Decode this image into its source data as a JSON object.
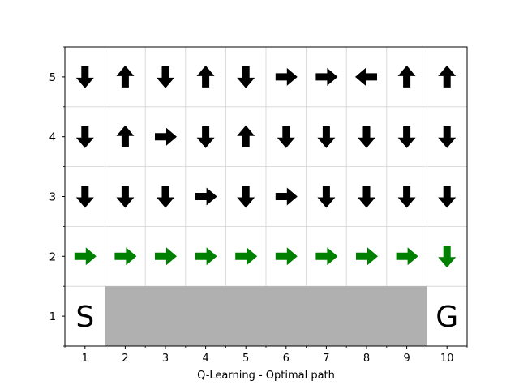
{
  "chart_data": {
    "type": "grid-policy",
    "title": "",
    "xlabel": "Q-Learning - Optimal path",
    "ylabel": "",
    "xlim": [
      0.5,
      10.5
    ],
    "ylim": [
      0.5,
      5.5
    ],
    "xticks": [
      1,
      2,
      3,
      4,
      5,
      6,
      7,
      8,
      9,
      10
    ],
    "yticks": [
      1,
      2,
      3,
      4,
      5
    ],
    "grid": true,
    "colors": {
      "policy": "#000000",
      "path": "#008000",
      "cliff": "#b0b0b0",
      "grid": "#d3d3d3"
    },
    "cliff": {
      "x_from": 2,
      "x_to": 9,
      "y": 1
    },
    "labels": [
      {
        "text": "S",
        "x": 1,
        "y": 1
      },
      {
        "text": "G",
        "x": 10,
        "y": 1
      }
    ],
    "arrows": [
      {
        "x": 1,
        "y": 5,
        "dir": "down",
        "path": false
      },
      {
        "x": 2,
        "y": 5,
        "dir": "up",
        "path": false
      },
      {
        "x": 3,
        "y": 5,
        "dir": "down",
        "path": false
      },
      {
        "x": 4,
        "y": 5,
        "dir": "up",
        "path": false
      },
      {
        "x": 5,
        "y": 5,
        "dir": "down",
        "path": false
      },
      {
        "x": 6,
        "y": 5,
        "dir": "right",
        "path": false
      },
      {
        "x": 7,
        "y": 5,
        "dir": "right",
        "path": false
      },
      {
        "x": 8,
        "y": 5,
        "dir": "left",
        "path": false
      },
      {
        "x": 9,
        "y": 5,
        "dir": "up",
        "path": false
      },
      {
        "x": 10,
        "y": 5,
        "dir": "up",
        "path": false
      },
      {
        "x": 1,
        "y": 4,
        "dir": "down",
        "path": false
      },
      {
        "x": 2,
        "y": 4,
        "dir": "up",
        "path": false
      },
      {
        "x": 3,
        "y": 4,
        "dir": "right",
        "path": false
      },
      {
        "x": 4,
        "y": 4,
        "dir": "down",
        "path": false
      },
      {
        "x": 5,
        "y": 4,
        "dir": "up",
        "path": false
      },
      {
        "x": 6,
        "y": 4,
        "dir": "down",
        "path": false
      },
      {
        "x": 7,
        "y": 4,
        "dir": "down",
        "path": false
      },
      {
        "x": 8,
        "y": 4,
        "dir": "down",
        "path": false
      },
      {
        "x": 9,
        "y": 4,
        "dir": "down",
        "path": false
      },
      {
        "x": 10,
        "y": 4,
        "dir": "down",
        "path": false
      },
      {
        "x": 1,
        "y": 3,
        "dir": "down",
        "path": false
      },
      {
        "x": 2,
        "y": 3,
        "dir": "down",
        "path": false
      },
      {
        "x": 3,
        "y": 3,
        "dir": "down",
        "path": false
      },
      {
        "x": 4,
        "y": 3,
        "dir": "right",
        "path": false
      },
      {
        "x": 5,
        "y": 3,
        "dir": "down",
        "path": false
      },
      {
        "x": 6,
        "y": 3,
        "dir": "right",
        "path": false
      },
      {
        "x": 7,
        "y": 3,
        "dir": "down",
        "path": false
      },
      {
        "x": 8,
        "y": 3,
        "dir": "down",
        "path": false
      },
      {
        "x": 9,
        "y": 3,
        "dir": "down",
        "path": false
      },
      {
        "x": 10,
        "y": 3,
        "dir": "down",
        "path": false
      },
      {
        "x": 1,
        "y": 2,
        "dir": "right",
        "path": true
      },
      {
        "x": 2,
        "y": 2,
        "dir": "right",
        "path": true
      },
      {
        "x": 3,
        "y": 2,
        "dir": "right",
        "path": true
      },
      {
        "x": 4,
        "y": 2,
        "dir": "right",
        "path": true
      },
      {
        "x": 5,
        "y": 2,
        "dir": "right",
        "path": true
      },
      {
        "x": 6,
        "y": 2,
        "dir": "right",
        "path": true
      },
      {
        "x": 7,
        "y": 2,
        "dir": "right",
        "path": true
      },
      {
        "x": 8,
        "y": 2,
        "dir": "right",
        "path": true
      },
      {
        "x": 9,
        "y": 2,
        "dir": "right",
        "path": true
      },
      {
        "x": 10,
        "y": 2,
        "dir": "down",
        "path": true
      }
    ]
  }
}
